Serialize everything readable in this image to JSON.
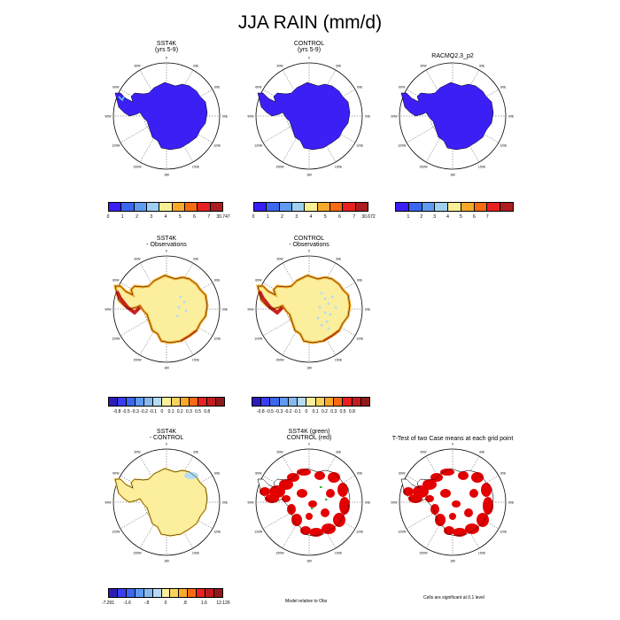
{
  "title": "JJA RAIN (mm/d)",
  "colors": {
    "ice": "#3b1ff5",
    "diff_pos": "#fbef9d",
    "coast_red": "#c8201e",
    "sig_red": "#e30000"
  },
  "panels": [
    {
      "id": "p1",
      "title1": "SST4K",
      "title2": "(yrs 5-9)",
      "kind": "abs",
      "fill": "#3b1ff5"
    },
    {
      "id": "p2",
      "title1": "CONTROL",
      "title2": "(yrs 5-9)",
      "kind": "abs",
      "fill": "#3b1ff5"
    },
    {
      "id": "p3",
      "title1": "RACMO2.3_p2",
      "title2": "",
      "kind": "abs",
      "fill": "#3b1ff5"
    },
    {
      "id": "p4",
      "title1": "SST4K",
      "title2": "- Observations",
      "kind": "diff",
      "fill": "#fbef9d"
    },
    {
      "id": "p5",
      "title1": "CONTROL",
      "title2": "- Observations",
      "kind": "diff",
      "fill": "#fbef9d"
    },
    {
      "id": "p6",
      "title1": "SST4K",
      "title2": "- CONTROL",
      "kind": "diff2",
      "fill": "#fbef9d"
    },
    {
      "id": "p7",
      "title1": "SST4K (green)",
      "title2": "CONTROL (red)",
      "kind": "sig",
      "fill": "#ffffff"
    },
    {
      "id": "p8",
      "title1": "T-Test of two Case means at each grid point",
      "title2": "",
      "kind": "sig",
      "fill": "#ffffff"
    }
  ],
  "map_labels": {
    "lon": [
      "0",
      "30E",
      "60E",
      "90E",
      "120E",
      "150E",
      "180",
      "150W",
      "120W",
      "90W",
      "60W",
      "30W"
    ]
  },
  "legends": [
    {
      "id": "l1",
      "colors": [
        "#3a1ef7",
        "#3a67ee",
        "#5f9bf2",
        "#9fd0f0",
        "#f9ef94",
        "#f8a82a",
        "#f66a13",
        "#e72020",
        "#ab1d1f"
      ],
      "labels": [
        "0",
        "1",
        "2",
        "3",
        "4",
        "5",
        "6",
        "7",
        "30.747"
      ]
    },
    {
      "id": "l2",
      "colors": [
        "#3a1ef7",
        "#3a67ee",
        "#5f9bf2",
        "#9fd0f0",
        "#f9ef94",
        "#f8a82a",
        "#f66a13",
        "#e72020",
        "#ab1d1f"
      ],
      "labels": [
        "0",
        "1",
        "2",
        "3",
        "4",
        "5",
        "6",
        "7",
        "30.672"
      ]
    },
    {
      "id": "l3",
      "colors": [
        "#3a1ef7",
        "#3a67ee",
        "#5f9bf2",
        "#9fd0f0",
        "#f9ef94",
        "#f8a82a",
        "#f66a13",
        "#e72020",
        "#ab1d1f"
      ],
      "labels": [
        "1",
        "2",
        "3",
        "4",
        "5",
        "6",
        "7"
      ]
    },
    {
      "id": "l4",
      "colors": [
        "#2a1db7",
        "#3a3df0",
        "#3a67ee",
        "#5f9bf2",
        "#86b9f0",
        "#b5dcf2",
        "#fbef9d",
        "#f8d25c",
        "#f8a82a",
        "#f66a13",
        "#e72020",
        "#c21c1e",
        "#8f1a1c"
      ],
      "labels": [
        "-0.8",
        "-0.5",
        "-0.3",
        "-0.2",
        "-0.1",
        "0",
        "0.1",
        "0.2",
        "0.3",
        "0.5",
        "0.8"
      ]
    },
    {
      "id": "l5",
      "colors": [
        "#2a1db7",
        "#3a3df0",
        "#3a67ee",
        "#5f9bf2",
        "#86b9f0",
        "#b5dcf2",
        "#fbef9d",
        "#f8d25c",
        "#f8a82a",
        "#f66a13",
        "#e72020",
        "#c21c1e",
        "#8f1a1c"
      ],
      "labels": [
        "-0.8",
        "-0.5",
        "-0.3",
        "-0.2",
        "-0.1",
        "0",
        "0.1",
        "0.2",
        "0.3",
        "0.5",
        "0.8"
      ]
    },
    {
      "id": "l6",
      "colors": [
        "#2a1db7",
        "#3a3df0",
        "#3a67ee",
        "#5f9bf2",
        "#86b9f0",
        "#b5dcf2",
        "#fbef9d",
        "#f8d25c",
        "#f8a82a",
        "#f66a13",
        "#e72020",
        "#c21c1e",
        "#8f1a1c"
      ],
      "labels": [
        "-7.291",
        "-1.6",
        "-.8",
        "0",
        ".8",
        "1.6",
        "12.126"
      ]
    }
  ],
  "notes": {
    "model_rel": "Model relative to Obs",
    "cells_sig": "Cells are significant at 0.1 level"
  }
}
